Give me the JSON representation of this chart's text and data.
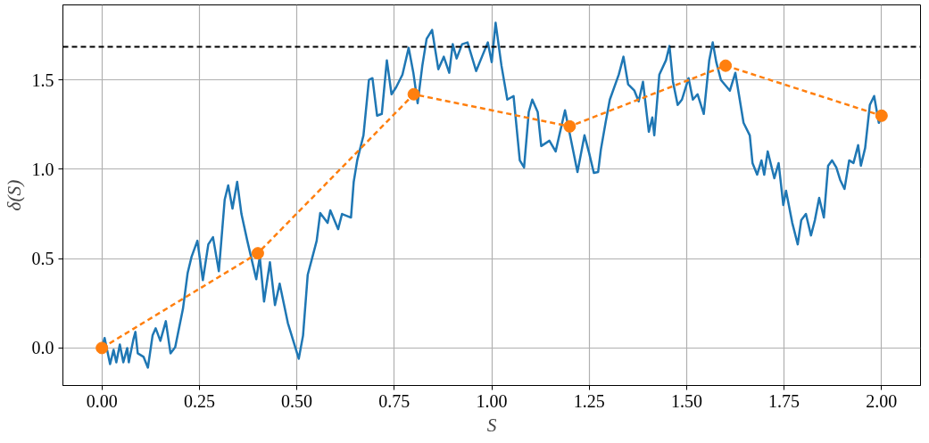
{
  "chart_data": {
    "type": "line",
    "xlabel": "S",
    "ylabel": "δ(S)",
    "xlim": [
      -0.1,
      2.1
    ],
    "ylim": [
      -0.21,
      1.92
    ],
    "xticks": [
      {
        "value": 0,
        "label": "0.00"
      },
      {
        "value": 0.25,
        "label": "0.25"
      },
      {
        "value": 0.5,
        "label": "0.50"
      },
      {
        "value": 0.75,
        "label": "0.75"
      },
      {
        "value": 1,
        "label": "1.00"
      },
      {
        "value": 1.25,
        "label": "1.25"
      },
      {
        "value": 1.5,
        "label": "1.50"
      },
      {
        "value": 1.75,
        "label": "1.75"
      },
      {
        "value": 2,
        "label": "2.00"
      }
    ],
    "yticks": [
      {
        "value": 0,
        "label": "0.0"
      },
      {
        "value": 0.5,
        "label": "0.5"
      },
      {
        "value": 1,
        "label": "1.0"
      },
      {
        "value": 1.5,
        "label": "1.5"
      }
    ],
    "grid": true,
    "series": [
      {
        "color": "#1f77b4",
        "x": [
          0,
          0.007,
          0.021,
          0.03,
          0.037,
          0.046,
          0.055,
          0.065,
          0.069,
          0.081,
          0.086,
          0.092,
          0.107,
          0.118,
          0.13,
          0.138,
          0.15,
          0.164,
          0.176,
          0.188,
          0.208,
          0.22,
          0.23,
          0.245,
          0.259,
          0.273,
          0.285,
          0.3,
          0.315,
          0.324,
          0.335,
          0.347,
          0.358,
          0.373,
          0.396,
          0.405,
          0.416,
          0.431,
          0.444,
          0.456,
          0.477,
          0.505,
          0.516,
          0.528,
          0.539,
          0.551,
          0.56,
          0.579,
          0.586,
          0.606,
          0.616,
          0.639,
          0.646,
          0.655,
          0.671,
          0.685,
          0.694,
          0.706,
          0.718,
          0.731,
          0.743,
          0.755,
          0.771,
          0.787,
          0.799,
          0.81,
          0.822,
          0.833,
          0.847,
          0.863,
          0.877,
          0.891,
          0.9,
          0.91,
          0.924,
          0.938,
          0.96,
          0.975,
          0.99,
          1.0,
          1.01,
          1.025,
          1.04,
          1.056,
          1.072,
          1.083,
          1.095,
          1.104,
          1.118,
          1.127,
          1.148,
          1.164,
          1.188,
          1.22,
          1.238,
          1.25,
          1.262,
          1.273,
          1.28,
          1.292,
          1.303,
          1.326,
          1.338,
          1.35,
          1.366,
          1.377,
          1.388,
          1.403,
          1.412,
          1.417,
          1.43,
          1.447,
          1.456,
          1.465,
          1.477,
          1.488,
          1.505,
          1.516,
          1.528,
          1.544,
          1.558,
          1.567,
          1.576,
          1.588,
          1.611,
          1.625,
          1.634,
          1.646,
          1.662,
          1.669,
          1.681,
          1.692,
          1.699,
          1.708,
          1.725,
          1.736,
          1.748,
          1.755,
          1.771,
          1.785,
          1.794,
          1.806,
          1.819,
          1.829,
          1.84,
          1.852,
          1.863,
          1.873,
          1.884,
          1.894,
          1.905,
          1.917,
          1.928,
          1.94,
          1.947,
          1.958,
          1.97,
          1.981,
          1.993,
          2.0
        ],
        "values": [
          0,
          0.056,
          -0.09,
          -0.01,
          -0.08,
          0.02,
          -0.08,
          0,
          -0.08,
          0.05,
          0.09,
          -0.03,
          -0.05,
          -0.11,
          0.07,
          0.11,
          0.04,
          0.15,
          -0.03,
          0.005,
          0.22,
          0.42,
          0.51,
          0.6,
          0.38,
          0.58,
          0.62,
          0.43,
          0.83,
          0.91,
          0.78,
          0.93,
          0.75,
          0.6,
          0.385,
          0.51,
          0.26,
          0.48,
          0.24,
          0.36,
          0.14,
          -0.06,
          0.07,
          0.41,
          0.5,
          0.6,
          0.755,
          0.7,
          0.77,
          0.665,
          0.75,
          0.73,
          0.93,
          1.05,
          1.19,
          1.5,
          1.51,
          1.3,
          1.31,
          1.61,
          1.42,
          1.46,
          1.53,
          1.68,
          1.54,
          1.37,
          1.58,
          1.73,
          1.78,
          1.56,
          1.63,
          1.54,
          1.7,
          1.62,
          1.7,
          1.71,
          1.55,
          1.63,
          1.71,
          1.6,
          1.82,
          1.58,
          1.39,
          1.41,
          1.05,
          1.01,
          1.32,
          1.39,
          1.32,
          1.13,
          1.16,
          1.1,
          1.33,
          0.985,
          1.19,
          1.09,
          0.98,
          0.985,
          1.11,
          1.26,
          1.39,
          1.53,
          1.63,
          1.475,
          1.44,
          1.38,
          1.49,
          1.21,
          1.29,
          1.19,
          1.53,
          1.61,
          1.69,
          1.49,
          1.36,
          1.39,
          1.51,
          1.39,
          1.42,
          1.31,
          1.61,
          1.71,
          1.6,
          1.5,
          1.44,
          1.54,
          1.42,
          1.26,
          1.19,
          1.035,
          0.97,
          1.05,
          0.97,
          1.1,
          0.95,
          1.035,
          0.8,
          0.88,
          0.7,
          0.58,
          0.715,
          0.75,
          0.63,
          0.715,
          0.84,
          0.73,
          1.02,
          1.05,
          1.01,
          0.94,
          0.89,
          1.05,
          1.035,
          1.135,
          1.02,
          1.12,
          1.36,
          1.41,
          1.26,
          1.29
        ]
      },
      {
        "color": "#ff7f0e",
        "marker": "circle",
        "line_style": "dashed",
        "x": [
          0,
          0.4,
          0.8,
          1.2,
          1.6,
          2.0
        ],
        "values": [
          0,
          0.53,
          1.42,
          1.24,
          1.58,
          1.3
        ]
      }
    ],
    "ref_lines": [
      {
        "axis": "y",
        "value": 1.686,
        "color": "#000000",
        "line_style": "dashed"
      }
    ]
  }
}
